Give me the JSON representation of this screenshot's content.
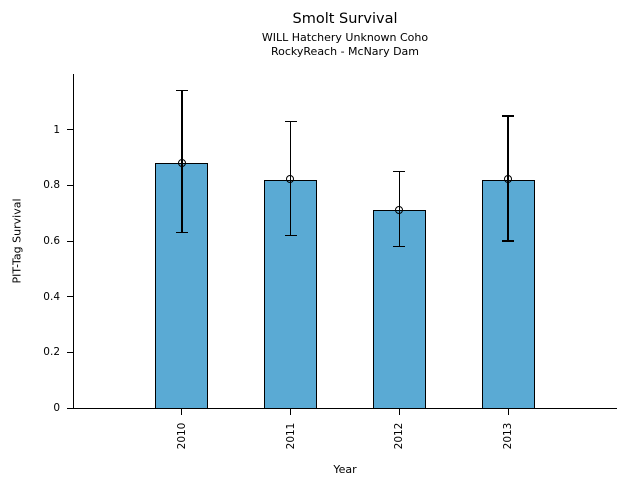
{
  "chart_data": {
    "type": "bar",
    "title": "Smolt Survival",
    "subtitles": [
      "WILL Hatchery Unknown Coho",
      "RockyReach - McNary Dam"
    ],
    "categories": [
      "2010",
      "2011",
      "2012",
      "2013"
    ],
    "values": [
      0.88,
      0.82,
      0.71,
      0.82
    ],
    "error_low": [
      0.63,
      0.62,
      0.58,
      0.6
    ],
    "error_high": [
      1.14,
      1.03,
      0.85,
      1.05
    ],
    "marker": "open-circle",
    "xlabel": "Year",
    "ylabel": "PIT-Tag Survival",
    "ylim": [
      0,
      1.2
    ],
    "yticks": [
      {
        "value": 0,
        "label": "0"
      },
      {
        "value": 0.2,
        "label": "0.2"
      },
      {
        "value": 0.4,
        "label": "0.4"
      },
      {
        "value": 0.6,
        "label": "0.6"
      },
      {
        "value": 0.8,
        "label": "0.8"
      },
      {
        "value": 1,
        "label": "1"
      }
    ],
    "grid": false,
    "legend": false,
    "bar_color": "#5AAAD4",
    "edge_color": "#000000",
    "text_color": "#000000"
  }
}
